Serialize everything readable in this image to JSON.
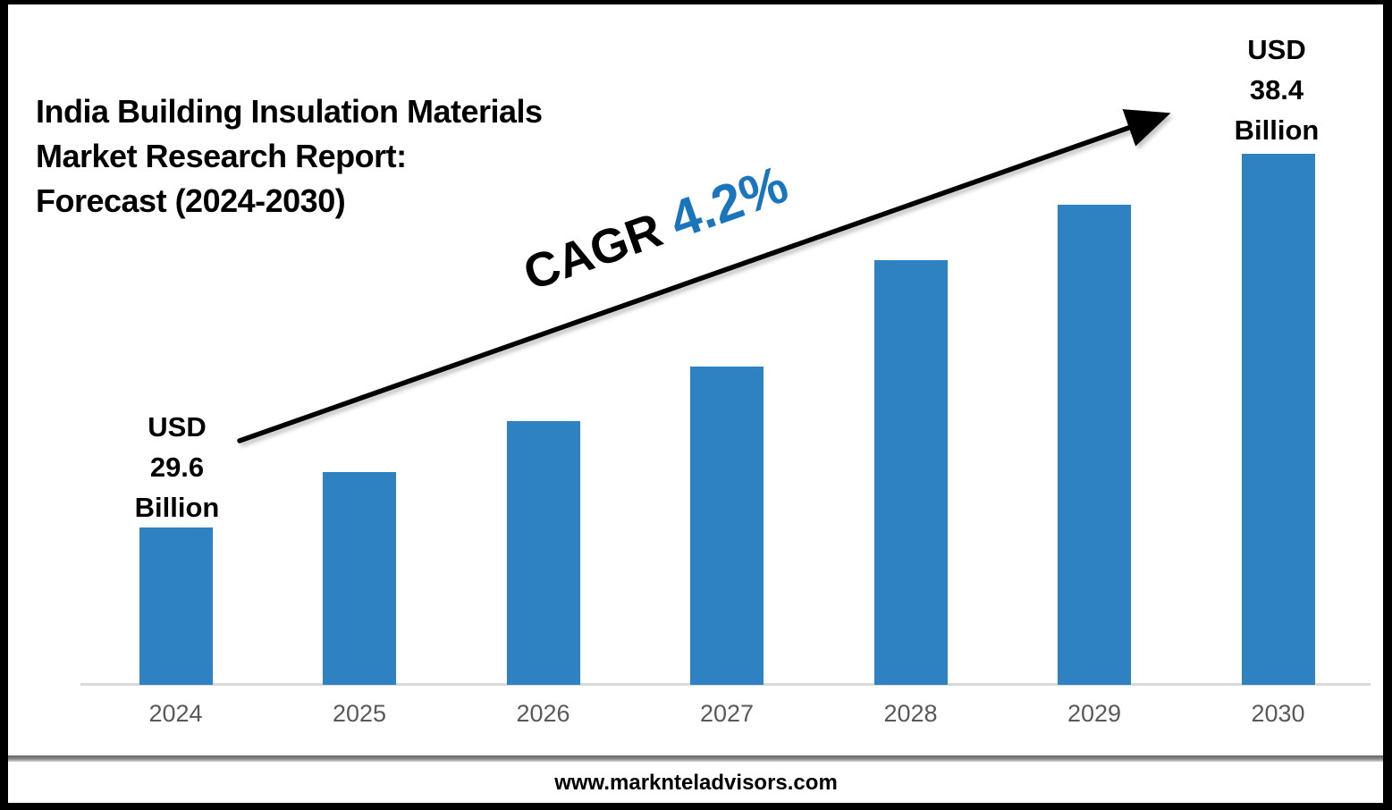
{
  "title": {
    "lines": [
      "India Building Insulation Materials",
      "Market Research Report:",
      "Forecast (2024-2030)"
    ]
  },
  "annotations": {
    "start_label": {
      "lines": [
        "USD",
        "29.6",
        "Billion"
      ]
    },
    "end_label": {
      "lines": [
        "USD",
        "38.4",
        "Billion"
      ]
    },
    "cagr": {
      "prefix": "CAGR ",
      "value": "4.2%",
      "value_color": "#1b75bc"
    }
  },
  "chart_data": {
    "type": "bar",
    "title": "India Building Insulation Materials Market Research Report: Forecast (2024-2030)",
    "categories": [
      "2024",
      "2025",
      "2026",
      "2027",
      "2028",
      "2029",
      "2030"
    ],
    "values": [
      29.6,
      30.9,
      32.1,
      33.4,
      35.9,
      37.2,
      38.4
    ],
    "units": "USD Billion",
    "ylim": [
      25.9,
      38.4
    ],
    "xlabel": "",
    "ylabel": "",
    "grid": false,
    "legend": false,
    "first_value_label": "USD 29.6 Billion",
    "last_value_label": "USD 38.4 Billion",
    "cagr": "4.2%",
    "bar_color": "#2f82c1",
    "axis_label_color": "#595959",
    "baseline_color": "#d9d9d9",
    "arrow_color": "#000000"
  },
  "footer": {
    "url": "www.marknteladvisors.com"
  }
}
